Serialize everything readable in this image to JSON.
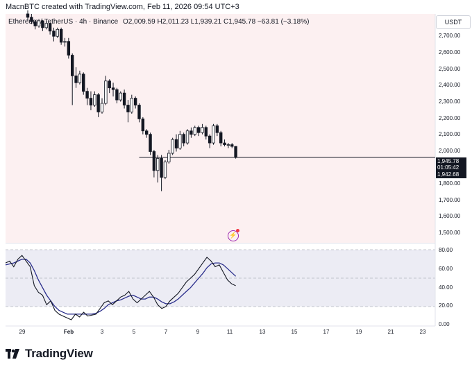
{
  "header": {
    "attribution": "MacnBTC created with TradingView.com, Feb 11, 2026 09:54 UTC+3"
  },
  "legend": {
    "symbol": "Ethereum / TetherUS · 4h · Binance",
    "open": "O2,009.59",
    "high": "H2,011.23",
    "low": "L1,939.21",
    "close": "C1,945.78",
    "change": "−63.81 (−3.18%)"
  },
  "price_axis": {
    "unit": "USDT",
    "labels": [
      "2,700.00",
      "2,600.00",
      "2,500.00",
      "2,400.00",
      "2,300.00",
      "2,200.00",
      "2,100.00",
      "2,000.00",
      "1,800.00",
      "1,700.00",
      "1,600.00",
      "1,500.00"
    ],
    "current_price": "1,945.78",
    "countdown": "01:05:42",
    "low_price": "1,942.68"
  },
  "oscillator_axis": {
    "labels": [
      "80.00",
      "60.00",
      "40.00",
      "20.00",
      "0.00"
    ]
  },
  "time_axis": {
    "labels": [
      "29",
      "Feb",
      "3",
      "5",
      "7",
      "9",
      "11",
      "13",
      "15",
      "17",
      "19",
      "21",
      "23"
    ]
  },
  "brand": {
    "name": "TradingView"
  },
  "colors": {
    "pane_bg": "#fcf0f1",
    "osc_band": "#ececf4",
    "up_candle": "#ffffff",
    "down_candle": "#131722",
    "signal_line": "#2a2e8c",
    "osc_line": "#131722"
  },
  "icons": {
    "indicator": "bolt-icon",
    "logo": "tradingview-logo-icon"
  },
  "chart_data": {
    "type": "candlestick",
    "symbol": "ETHUSDT",
    "timeframe": "4h",
    "ylim": [
      1450,
      2780
    ],
    "candles": [
      [
        2780,
        2800,
        2740,
        2760
      ],
      [
        2760,
        2780,
        2720,
        2735
      ],
      [
        2735,
        2745,
        2690,
        2710
      ],
      [
        2710,
        2750,
        2700,
        2740
      ],
      [
        2740,
        2745,
        2680,
        2700
      ],
      [
        2700,
        2740,
        2690,
        2725
      ],
      [
        2725,
        2730,
        2660,
        2680
      ],
      [
        2680,
        2700,
        2620,
        2650
      ],
      [
        2650,
        2700,
        2640,
        2690
      ],
      [
        2690,
        2700,
        2600,
        2615
      ],
      [
        2615,
        2640,
        2590,
        2620
      ],
      [
        2620,
        2640,
        2520,
        2540
      ],
      [
        2540,
        2550,
        2250,
        2420
      ],
      [
        2420,
        2470,
        2350,
        2380
      ],
      [
        2380,
        2450,
        2370,
        2430
      ],
      [
        2430,
        2440,
        2310,
        2330
      ],
      [
        2330,
        2350,
        2250,
        2290
      ],
      [
        2290,
        2330,
        2220,
        2250
      ],
      [
        2250,
        2330,
        2240,
        2310
      ],
      [
        2310,
        2320,
        2180,
        2210
      ],
      [
        2210,
        2290,
        2200,
        2260
      ],
      [
        2260,
        2420,
        2250,
        2390
      ],
      [
        2390,
        2400,
        2320,
        2350
      ],
      [
        2350,
        2380,
        2300,
        2340
      ],
      [
        2340,
        2350,
        2260,
        2280
      ],
      [
        2280,
        2330,
        2270,
        2320
      ],
      [
        2320,
        2340,
        2230,
        2250
      ],
      [
        2250,
        2280,
        2150,
        2210
      ],
      [
        2210,
        2310,
        2200,
        2290
      ],
      [
        2290,
        2300,
        2230,
        2250
      ],
      [
        2250,
        2260,
        2150,
        2170
      ],
      [
        2170,
        2180,
        2080,
        2100
      ],
      [
        2100,
        2110,
        2060,
        2080
      ],
      [
        2080,
        2090,
        1960,
        1980
      ],
      [
        1980,
        1990,
        1830,
        1870
      ],
      [
        1870,
        1960,
        1800,
        1940
      ],
      [
        1940,
        1960,
        1750,
        1830
      ],
      [
        1830,
        1930,
        1820,
        1920
      ],
      [
        1920,
        1990,
        1910,
        1970
      ],
      [
        1970,
        2060,
        1960,
        2050
      ],
      [
        2050,
        2080,
        1980,
        2000
      ],
      [
        2000,
        2100,
        1990,
        2080
      ],
      [
        2080,
        2090,
        2010,
        2030
      ],
      [
        2030,
        2110,
        2020,
        2100
      ],
      [
        2100,
        2120,
        2060,
        2080
      ],
      [
        2080,
        2130,
        2070,
        2120
      ],
      [
        2120,
        2130,
        2070,
        2090
      ],
      [
        2090,
        2140,
        2080,
        2120
      ],
      [
        2120,
        2130,
        2050,
        2070
      ],
      [
        2070,
        2080,
        2000,
        2030
      ],
      [
        2030,
        2140,
        2020,
        2130
      ],
      [
        2130,
        2140,
        2070,
        2090
      ],
      [
        2090,
        2100,
        2010,
        2030
      ],
      [
        2030,
        2050,
        2010,
        2020
      ],
      [
        2020,
        2030,
        2000,
        2020
      ],
      [
        2020,
        2030,
        2000,
        2010
      ],
      [
        2010,
        2011,
        1939,
        1946
      ]
    ],
    "oscillator": {
      "ylim": [
        0,
        100
      ],
      "band": [
        20,
        80
      ],
      "k": [
        66,
        68,
        62,
        70,
        74,
        68,
        62,
        42,
        35,
        32,
        22,
        26,
        16,
        12,
        10,
        8,
        6,
        12,
        9,
        14,
        10,
        11,
        12,
        18,
        24,
        26,
        22,
        26,
        30,
        32,
        36,
        28,
        24,
        28,
        32,
        36,
        30,
        22,
        18,
        20,
        26,
        30,
        34,
        40,
        46,
        50,
        54,
        60,
        66,
        72,
        68,
        62,
        64,
        56,
        48,
        44,
        42
      ],
      "d": [
        64,
        65,
        66,
        68,
        70,
        70,
        66,
        58,
        48,
        40,
        32,
        26,
        20,
        16,
        14,
        12,
        12,
        12,
        12,
        12,
        12,
        12,
        13,
        15,
        18,
        22,
        24,
        26,
        27,
        29,
        31,
        32,
        30,
        28,
        28,
        30,
        30,
        28,
        25,
        23,
        23,
        25,
        28,
        32,
        36,
        40,
        45,
        50,
        55,
        61,
        65,
        66,
        66,
        64,
        60,
        56,
        52
      ]
    }
  }
}
